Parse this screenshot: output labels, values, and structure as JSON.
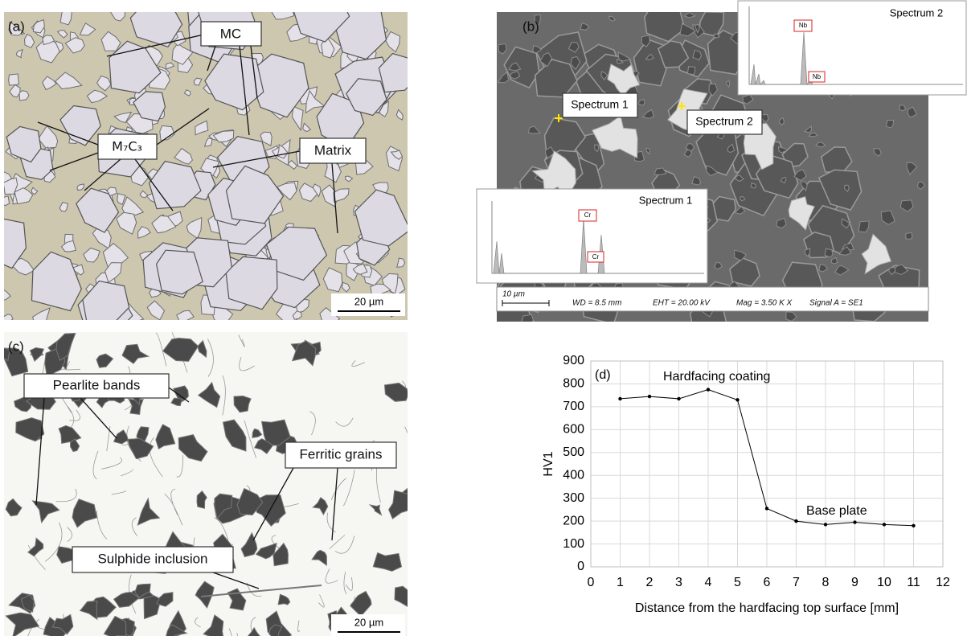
{
  "panel_a": {
    "label": "(a)",
    "annotations": [
      "MC",
      "M₇C₃",
      "Matrix"
    ],
    "scale_bar": "20 µm"
  },
  "panel_b": {
    "label": "(b)",
    "points": [
      "Spectrum 1",
      "Spectrum 2"
    ],
    "spectrum_1": {
      "title": "Spectrum 1",
      "peaks": [
        "Cr",
        "Cr"
      ]
    },
    "spectrum_2": {
      "title": "Spectrum 2",
      "peaks": [
        "Nb",
        "Nb"
      ]
    },
    "info_bar": {
      "scale_bar": "10 µm",
      "wd": "WD =  8.5 mm",
      "eht": "EHT = 20.00 kV",
      "mag": "Mag =   3.50 K X",
      "signal": "Signal A = SE1"
    }
  },
  "panel_c": {
    "label": "(c)",
    "annotations": [
      "Pearlite bands",
      "Ferritic grains",
      "Sulphide inclusion"
    ],
    "scale_bar": "20 µm"
  },
  "chart_data": {
    "type": "line",
    "x_label": "Distance from the hardfacing top surface [mm]",
    "y_label": "HV1",
    "annotations": [
      "(d)",
      "Hardfacing coating",
      "Base plate"
    ],
    "x": [
      1,
      2,
      3,
      4,
      5,
      6,
      7,
      8,
      9,
      10,
      11
    ],
    "series": [
      {
        "name": "HV1",
        "color": "#000000",
        "values": [
          735,
          745,
          735,
          775,
          730,
          255,
          200,
          185,
          195,
          185,
          180
        ]
      }
    ],
    "xlim": [
      0,
      12
    ],
    "xticks": [
      0,
      1,
      2,
      3,
      4,
      5,
      6,
      7,
      8,
      9,
      10,
      11,
      12
    ],
    "ylim": [
      0,
      900
    ],
    "yticks": [
      0,
      100,
      200,
      300,
      400,
      500,
      600,
      700,
      800,
      900
    ],
    "grid": true
  }
}
